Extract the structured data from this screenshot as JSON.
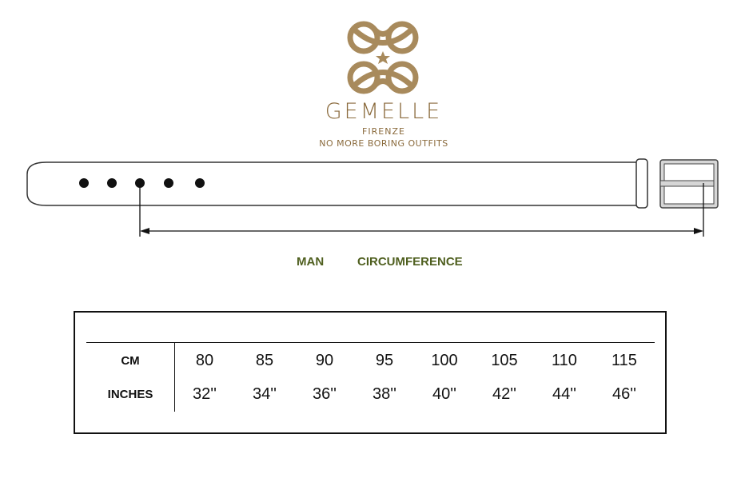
{
  "brand": {
    "name": "GEMELLE",
    "city": "FIRENZE",
    "tagline": "NO MORE BORING OUTFITS",
    "color": "#a88a5c"
  },
  "diagram": {
    "holes": 5,
    "measured_hole": 3
  },
  "labels": {
    "gender": "MAN",
    "measure": "CIRCUMFERENCE",
    "color": "#4f5f1f"
  },
  "table": {
    "rows": [
      {
        "label": "CM",
        "values": [
          "80",
          "85",
          "90",
          "95",
          "100",
          "105",
          "110",
          "115"
        ]
      },
      {
        "label": "INCHES",
        "values": [
          "32''",
          "34''",
          "36''",
          "38''",
          "40''",
          "42''",
          "44''",
          "46''"
        ]
      }
    ]
  }
}
